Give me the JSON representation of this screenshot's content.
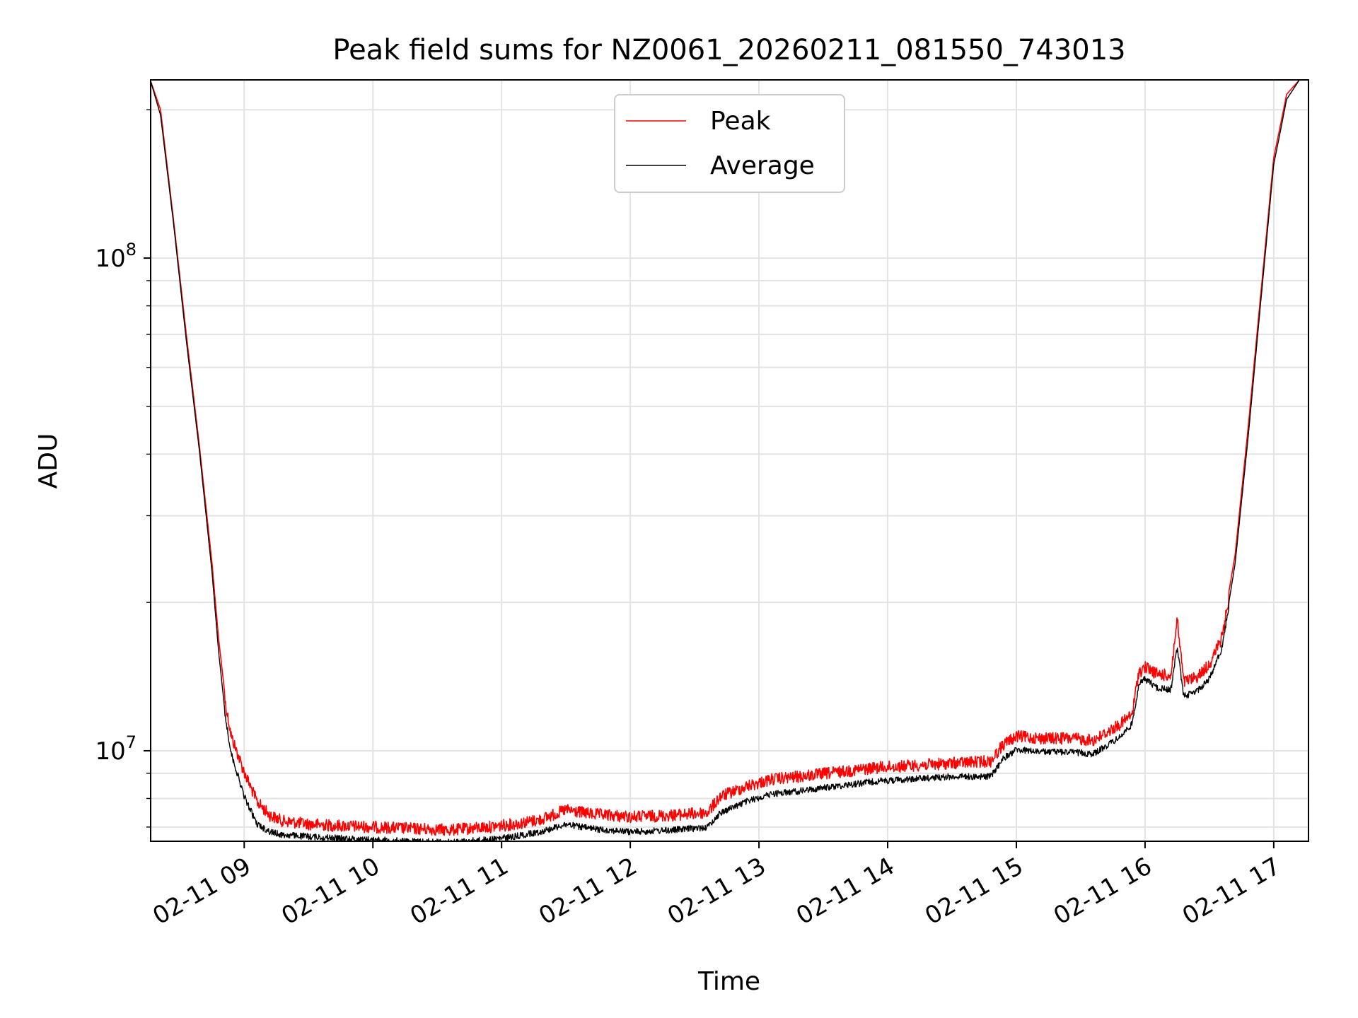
{
  "chart_data": {
    "type": "line",
    "title": "Peak field sums for NZ0061_20260211_081550_743013",
    "xlabel": "Time",
    "ylabel": "ADU",
    "yscale": "log",
    "ylim": [
      6550000,
      230000000
    ],
    "xlim_hours": [
      8.273,
      17.27
    ],
    "grid": true,
    "legend_position": "upper center",
    "x_ticks": [
      {
        "hour": 9,
        "label": "02-11 09"
      },
      {
        "hour": 10,
        "label": "02-11 10"
      },
      {
        "hour": 11,
        "label": "02-11 11"
      },
      {
        "hour": 12,
        "label": "02-11 12"
      },
      {
        "hour": 13,
        "label": "02-11 13"
      },
      {
        "hour": 14,
        "label": "02-11 14"
      },
      {
        "hour": 15,
        "label": "02-11 15"
      },
      {
        "hour": 16,
        "label": "02-11 16"
      },
      {
        "hour": 17,
        "label": "02-11 17"
      }
    ],
    "y_ticks": [
      {
        "value": 10000000,
        "base": "10",
        "exp": "7"
      },
      {
        "value": 100000000,
        "base": "10",
        "exp": "8"
      }
    ],
    "series": [
      {
        "name": "Peak",
        "color": "#ff0000",
        "x_hours": [
          8.27,
          8.35,
          8.45,
          8.55,
          8.65,
          8.75,
          8.8,
          8.85,
          8.9,
          9.0,
          9.1,
          9.2,
          9.3,
          9.5,
          9.7,
          10.0,
          10.3,
          10.6,
          10.9,
          11.1,
          11.3,
          11.5,
          11.7,
          12.0,
          12.3,
          12.6,
          12.7,
          12.9,
          13.1,
          13.3,
          13.6,
          13.9,
          14.2,
          14.5,
          14.8,
          14.9,
          15.0,
          15.2,
          15.4,
          15.6,
          15.8,
          15.9,
          15.95,
          16.0,
          16.1,
          16.2,
          16.25,
          16.3,
          16.4,
          16.5,
          16.6,
          16.7,
          16.8,
          16.9,
          17.0,
          17.05,
          17.1,
          17.2
        ],
        "values": [
          230000000,
          200000000,
          120000000,
          70000000,
          42000000,
          24000000,
          17000000,
          13000000,
          11000000,
          9300000,
          8100000,
          7600000,
          7400000,
          7300000,
          7250000,
          7200000,
          7150000,
          7100000,
          7200000,
          7300000,
          7450000,
          7800000,
          7650000,
          7550000,
          7600000,
          7700000,
          8300000,
          8700000,
          9000000,
          9100000,
          9300000,
          9500000,
          9600000,
          9700000,
          9800000,
          10600000,
          11000000,
          10900000,
          10900000,
          10800000,
          11600000,
          12200000,
          14800000,
          15200000,
          14700000,
          14600000,
          19000000,
          14200000,
          14500000,
          15400000,
          17500000,
          25000000,
          45000000,
          85000000,
          160000000,
          185000000,
          215000000,
          230000000
        ]
      },
      {
        "name": "Average",
        "color": "#000000",
        "x_hours": [
          8.27,
          8.35,
          8.45,
          8.55,
          8.65,
          8.75,
          8.8,
          8.85,
          8.9,
          9.0,
          9.1,
          9.2,
          9.3,
          9.5,
          9.7,
          10.0,
          10.3,
          10.6,
          10.9,
          11.1,
          11.3,
          11.5,
          11.7,
          12.0,
          12.3,
          12.6,
          12.7,
          12.9,
          13.1,
          13.3,
          13.6,
          13.9,
          14.2,
          14.5,
          14.8,
          14.9,
          15.0,
          15.2,
          15.4,
          15.6,
          15.8,
          15.9,
          15.95,
          16.0,
          16.1,
          16.2,
          16.25,
          16.3,
          16.4,
          16.5,
          16.6,
          16.7,
          16.8,
          16.9,
          17.0,
          17.05,
          17.1,
          17.2
        ],
        "values": [
          230000000,
          195000000,
          118000000,
          68000000,
          41000000,
          23000000,
          16000000,
          12000000,
          10000000,
          8200000,
          7200000,
          6950000,
          6850000,
          6800000,
          6750000,
          6700000,
          6650000,
          6620000,
          6700000,
          6800000,
          6950000,
          7200000,
          7050000,
          6950000,
          7000000,
          7100000,
          7600000,
          8000000,
          8300000,
          8400000,
          8600000,
          8800000,
          8900000,
          9000000,
          9000000,
          9800000,
          10200000,
          10100000,
          10100000,
          10000000,
          10800000,
          11500000,
          13800000,
          14200000,
          13600000,
          13500000,
          16500000,
          13100000,
          13400000,
          14200000,
          16500000,
          24000000,
          43000000,
          82000000,
          155000000,
          180000000,
          210000000,
          230000000
        ]
      }
    ]
  }
}
